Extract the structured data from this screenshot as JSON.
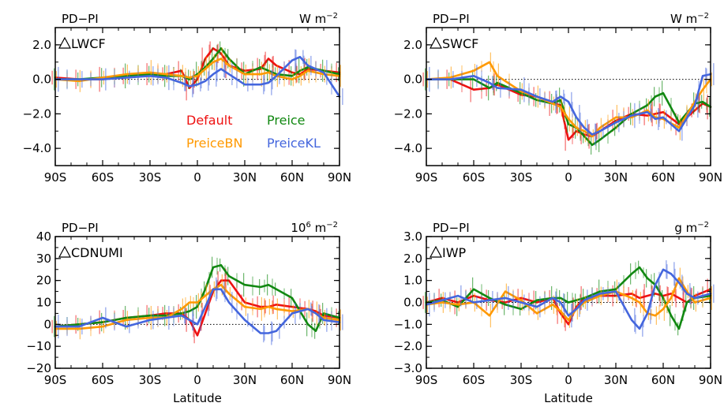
{
  "figure": {
    "xlabel": "Latitude",
    "legend": [
      {
        "name": "Default",
        "color": "#ee1111"
      },
      {
        "name": "Preice",
        "color": "#118811"
      },
      {
        "name": "PreiceBN",
        "color": "#ff9900"
      },
      {
        "name": "PreiceKL",
        "color": "#4466dd"
      }
    ]
  },
  "chart_data": [
    {
      "type": "line",
      "panel_label": "PD−PI",
      "variable": "LWCF",
      "units": {
        "base": "W  m",
        "exp": "−2"
      },
      "x": [
        -90,
        -75,
        -60,
        -45,
        -30,
        -20,
        -10,
        -5,
        0,
        5,
        10,
        15,
        20,
        30,
        40,
        45,
        50,
        60,
        65,
        70,
        80,
        90
      ],
      "ylim": [
        -5,
        3
      ],
      "yticks": [
        "2.0",
        "0.0",
        "−2.0",
        "−4.0"
      ],
      "ytick_values": [
        2,
        0,
        -2,
        -4
      ],
      "xticks": [
        "90S",
        "60S",
        "30S",
        "0",
        "30N",
        "60N",
        "90N"
      ],
      "xtick_values": [
        -90,
        -60,
        -30,
        0,
        30,
        60,
        90
      ],
      "reference_line": 0,
      "series": [
        {
          "name": "Default",
          "color": "#ee1111",
          "values": [
            0.1,
            0,
            0,
            0.2,
            0.3,
            0.3,
            0.5,
            -0.5,
            0,
            1.2,
            1.8,
            1.5,
            0.8,
            0.5,
            0.6,
            1.2,
            0.8,
            0.4,
            0.3,
            0.6,
            0.5,
            0.4
          ]
        },
        {
          "name": "Preice",
          "color": "#118811",
          "values": [
            0,
            0,
            0.1,
            0.2,
            0.3,
            0.2,
            0.2,
            0,
            0.3,
            0.7,
            1.2,
            1.8,
            1.2,
            0.3,
            0.7,
            0.5,
            0.3,
            0.2,
            0.5,
            0.7,
            0.5,
            0.3
          ]
        },
        {
          "name": "PreiceBN",
          "color": "#ff9900",
          "values": [
            0,
            -0.1,
            0.1,
            0.3,
            0.4,
            0.3,
            0.2,
            0.1,
            0.2,
            0.6,
            1.0,
            1.2,
            0.8,
            0.3,
            0.3,
            0.4,
            0.2,
            0,
            0.2,
            0.5,
            0.3,
            0.2
          ]
        },
        {
          "name": "PreiceKL",
          "color": "#4466dd",
          "values": [
            0,
            0,
            0,
            0.1,
            0.2,
            0.1,
            -0.2,
            -0.4,
            -0.3,
            -0.1,
            0.3,
            0.6,
            0.3,
            -0.3,
            -0.3,
            -0.2,
            0.2,
            1.1,
            1.3,
            0.8,
            0.4,
            -1.0
          ]
        }
      ]
    },
    {
      "type": "line",
      "panel_label": "PD−PI",
      "variable": "SWCF",
      "units": {
        "base": "W  m",
        "exp": "−2"
      },
      "x": [
        -90,
        -75,
        -60,
        -50,
        -45,
        -30,
        -20,
        -10,
        -5,
        0,
        5,
        10,
        15,
        20,
        30,
        40,
        50,
        55,
        60,
        70,
        80,
        85,
        90
      ],
      "ylim": [
        -5,
        3
      ],
      "yticks": [
        "2.0",
        "0.0",
        "−2.0",
        "−4.0"
      ],
      "ytick_values": [
        2,
        0,
        -2,
        -4
      ],
      "xticks": [
        "90S",
        "60S",
        "30S",
        "0",
        "30N",
        "60N",
        "90N"
      ],
      "xtick_values": [
        -90,
        -60,
        -30,
        0,
        30,
        60,
        90
      ],
      "reference_line": 0,
      "series": [
        {
          "name": "Default",
          "color": "#ee1111",
          "values": [
            0,
            0,
            -0.6,
            -0.5,
            -0.3,
            -0.9,
            -1.0,
            -1.4,
            -1.5,
            -3.5,
            -3.0,
            -3.2,
            -3.3,
            -3.0,
            -2.4,
            -2.0,
            -2.1,
            -2.0,
            -1.9,
            -2.6,
            -1.8,
            -1.4,
            -1.6
          ]
        },
        {
          "name": "Preice",
          "color": "#118811",
          "values": [
            0,
            0,
            0,
            -0.5,
            -0.2,
            -0.8,
            -1.2,
            -1.4,
            -1.2,
            -2.6,
            -2.8,
            -3.3,
            -3.8,
            -3.5,
            -2.8,
            -2.0,
            -1.5,
            -1.0,
            -0.8,
            -2.5,
            -1.4,
            -1.3,
            -1.6
          ]
        },
        {
          "name": "PreiceBN",
          "color": "#ff9900",
          "values": [
            0,
            0.1,
            0.5,
            1.0,
            0.2,
            -0.7,
            -1.0,
            -1.4,
            -1.6,
            -2.3,
            -2.8,
            -3.0,
            -3.3,
            -2.8,
            -2.2,
            -2.2,
            -1.8,
            -2.2,
            -2.3,
            -2.8,
            -1.3,
            -0.6,
            0
          ]
        },
        {
          "name": "PreiceKL",
          "color": "#4466dd",
          "values": [
            0,
            0,
            0.2,
            -0.2,
            -0.5,
            -0.6,
            -1.0,
            -1.3,
            -1.0,
            -1.3,
            -2.2,
            -2.8,
            -3.2,
            -3.0,
            -2.5,
            -2.1,
            -1.9,
            -2.3,
            -2.2,
            -3.0,
            -1.5,
            0.2,
            0.3
          ]
        }
      ]
    },
    {
      "type": "line",
      "panel_label": "PD−PI",
      "variable": "CDNUMI",
      "units": {
        "base_pre": "10",
        "base_pre_exp": "6",
        "base": " m",
        "exp": "−2"
      },
      "x": [
        -90,
        -75,
        -60,
        -45,
        -30,
        -20,
        -10,
        -5,
        0,
        5,
        10,
        15,
        20,
        30,
        40,
        45,
        50,
        60,
        70,
        75,
        80,
        90
      ],
      "ylim": [
        -20,
        40
      ],
      "yticks": [
        "40",
        "30",
        "20",
        "10",
        "0",
        "−10",
        "−20"
      ],
      "ytick_values": [
        40,
        30,
        20,
        10,
        0,
        -10,
        -20
      ],
      "xticks": [
        "90S",
        "60S",
        "30S",
        "0",
        "30N",
        "60N",
        "90N"
      ],
      "xtick_values": [
        -90,
        -60,
        -30,
        0,
        30,
        60,
        90
      ],
      "xlabel_ref": "figure.xlabel",
      "reference_line": 0,
      "series": [
        {
          "name": "Default",
          "color": "#ee1111",
          "values": [
            -1,
            0,
            1,
            3,
            4,
            5,
            5,
            2,
            -5,
            5,
            15,
            20,
            20,
            10,
            8,
            8,
            9,
            8,
            7,
            6,
            4,
            3
          ]
        },
        {
          "name": "Preice",
          "color": "#118811",
          "values": [
            -1,
            0,
            1,
            3,
            4,
            4,
            5,
            6,
            8,
            16,
            26,
            27,
            22,
            18,
            17,
            18,
            16,
            12,
            0,
            -3,
            5,
            3
          ]
        },
        {
          "name": "PreiceBN",
          "color": "#ff9900",
          "values": [
            -2,
            -2,
            -1,
            2,
            3,
            3,
            7,
            10,
            10,
            13,
            16,
            18,
            14,
            8,
            7,
            8,
            7,
            6,
            7,
            5,
            3,
            2
          ]
        },
        {
          "name": "PreiceKL",
          "color": "#4466dd",
          "values": [
            -1,
            -1,
            3,
            -1,
            2,
            3,
            4,
            2,
            0,
            8,
            16,
            16,
            10,
            2,
            -4,
            -4,
            -3,
            5,
            7,
            5,
            2,
            1
          ]
        }
      ]
    },
    {
      "type": "line",
      "panel_label": "PD−PI",
      "variable": "IWP",
      "units": {
        "base": "g  m",
        "exp": "−2"
      },
      "x": [
        -90,
        -80,
        -70,
        -60,
        -50,
        -40,
        -30,
        -20,
        -10,
        -5,
        0,
        5,
        10,
        20,
        30,
        40,
        45,
        50,
        55,
        60,
        65,
        70,
        75,
        80,
        90
      ],
      "ylim": [
        -3,
        3
      ],
      "yticks": [
        "3.0",
        "2.0",
        "1.0",
        "0.0",
        "−1.0",
        "−2.0",
        "−3.0"
      ],
      "ytick_values": [
        3,
        2,
        1,
        0,
        -1,
        -2,
        -3
      ],
      "xticks": [
        "90S",
        "60S",
        "30S",
        "0",
        "30N",
        "60N",
        "90N"
      ],
      "xtick_values": [
        -90,
        -60,
        -30,
        0,
        30,
        60,
        90
      ],
      "xlabel_ref": "figure.xlabel",
      "reference_line": 0,
      "series": [
        {
          "name": "Default",
          "color": "#ee1111",
          "values": [
            0,
            0.2,
            0,
            0.3,
            0.1,
            0,
            0.2,
            0,
            0.2,
            -0.5,
            -1.0,
            -0.2,
            0.2,
            0.3,
            0.3,
            0.4,
            0.2,
            0.3,
            0.4,
            0.3,
            0.4,
            0.2,
            0,
            0.3,
            0.6
          ]
        },
        {
          "name": "Preice",
          "color": "#118811",
          "values": [
            0,
            0.1,
            -0.2,
            0.6,
            0.2,
            -0.1,
            -0.3,
            0.1,
            0.2,
            0.2,
            0,
            0.1,
            0.2,
            0.5,
            0.6,
            1.3,
            1.6,
            1.1,
            0.8,
            0.2,
            -0.6,
            -1.2,
            0,
            0.2,
            0.3
          ]
        },
        {
          "name": "PreiceBN",
          "color": "#ff9900",
          "values": [
            -0.1,
            0,
            -0.1,
            0,
            -0.6,
            0.5,
            0.1,
            -0.5,
            -0.1,
            -0.4,
            -0.8,
            -0.3,
            0,
            0.3,
            0.5,
            0.2,
            0,
            -0.5,
            -0.6,
            -0.3,
            0.2,
            1.1,
            0.5,
            0,
            0.2
          ]
        },
        {
          "name": "PreiceKL",
          "color": "#4466dd",
          "values": [
            -0.1,
            0.1,
            0.3,
            0,
            0.1,
            0.2,
            0,
            -0.2,
            0.2,
            0,
            -0.6,
            -0.3,
            0.1,
            0.4,
            0.5,
            -0.8,
            -1.2,
            -0.5,
            0.8,
            1.5,
            1.3,
            0.9,
            0.4,
            0.2,
            0.4
          ]
        }
      ]
    }
  ]
}
